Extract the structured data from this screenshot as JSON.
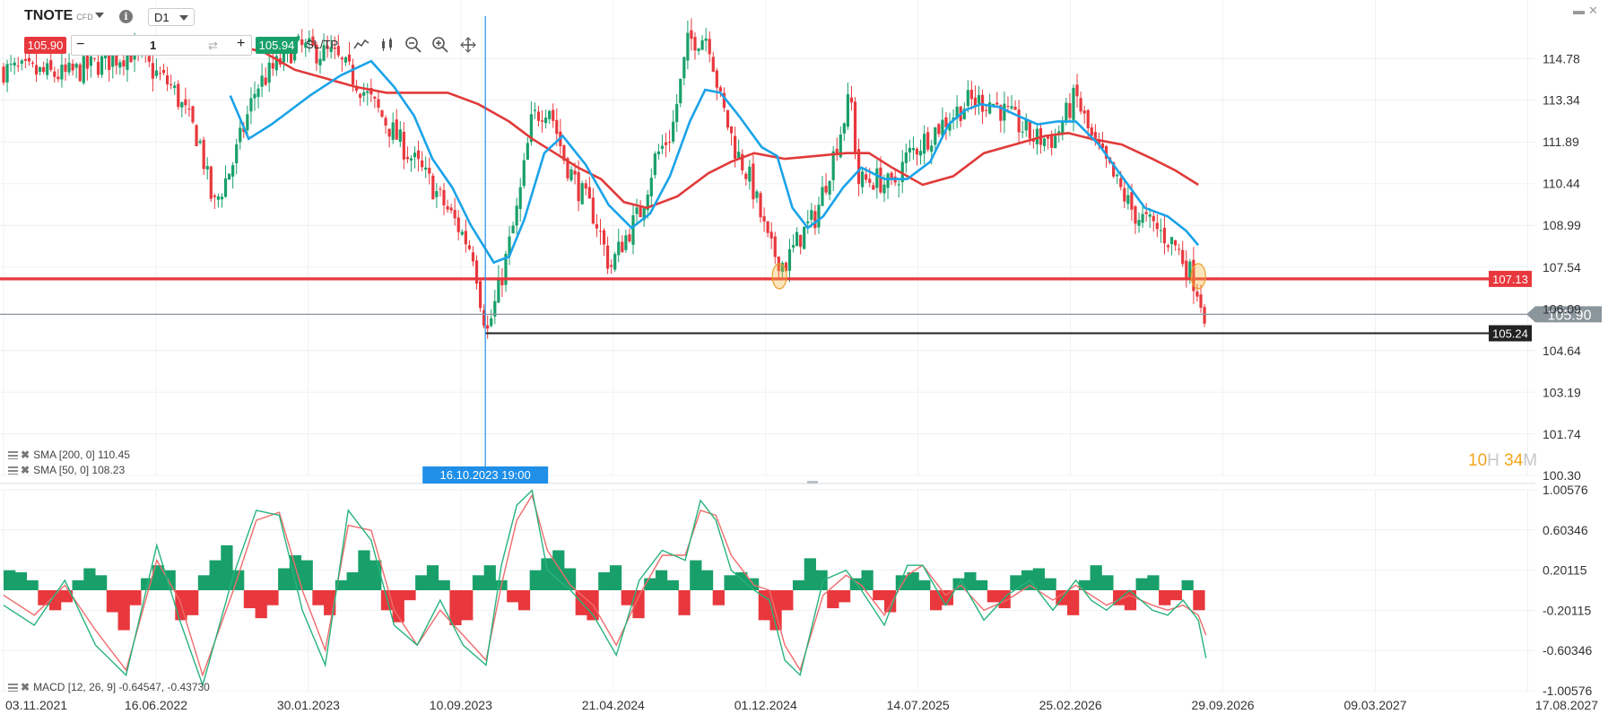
{
  "toolbar": {
    "symbol": "TNOTE",
    "symbol_type": "CFD",
    "timeframe": "D1",
    "bid": "105.90",
    "quantity": "1",
    "ask": "105.94",
    "sltp_label": "SL/TP"
  },
  "icons": [
    "chevron-down-icon",
    "info-icon",
    "line-chart-icon",
    "candles-icon",
    "zoom-out-icon",
    "zoom-in-icon",
    "move-icon",
    "minimize-icon",
    "close-icon"
  ],
  "legends": {
    "sma200": "SMA [200, 0] 110.45",
    "sma50": "SMA [50, 0] 108.23",
    "macd": "MACD [12, 26, 9] -0.64547, -0.43730"
  },
  "timer": {
    "hours": "10",
    "h": "H",
    "minutes": "34",
    "m": "M"
  },
  "crosshair_label": "16.10.2023 19:00",
  "colors": {
    "up": "#19a06a",
    "down": "#e8383d",
    "sma50": "#1aa3e8",
    "sma200": "#e13a3a",
    "macd": "#27b37c",
    "signal": "#ef6b6b",
    "crosshair": "#1f8fe8"
  },
  "chart_data": {
    "type": "candlestick",
    "instrument": "TNOTE",
    "timeframe": "D1",
    "price_axis": {
      "ticks": [
        "114.78",
        "113.34",
        "111.89",
        "110.44",
        "108.99",
        "107.54",
        "104.64",
        "103.19",
        "101.74",
        "100.30"
      ],
      "hidden_tick": "106.09",
      "range": [
        100.3,
        114.78
      ]
    },
    "time_axis": {
      "ticks": [
        "03.11.2021",
        "16.06.2022",
        "30.01.2023",
        "10.09.2023",
        "21.04.2024",
        "01.12.2024",
        "14.07.2025",
        "25.02.2026",
        "29.09.2026",
        "09.03.2027",
        "17.08.2027"
      ]
    },
    "horizontal_lines": [
      {
        "value": 107.13,
        "label": "107.13",
        "color": "#e8383d"
      },
      {
        "value": 105.24,
        "label": "105.24",
        "color": "#222222"
      },
      {
        "value": 105.9,
        "label": "105.90",
        "color": "#8a959c",
        "current_price": true
      }
    ],
    "crosshair": {
      "time": "16.10.2023 19:00"
    },
    "price_path": [
      [
        0.0,
        114.4
      ],
      [
        0.04,
        114.2
      ],
      [
        0.083,
        115.0
      ],
      [
        0.11,
        113.8
      ],
      [
        0.128,
        111.9
      ],
      [
        0.137,
        109.6
      ],
      [
        0.15,
        111.2
      ],
      [
        0.165,
        113.8
      ],
      [
        0.19,
        115.2
      ],
      [
        0.215,
        114.9
      ],
      [
        0.229,
        114.1
      ],
      [
        0.244,
        113.0
      ],
      [
        0.264,
        111.5
      ],
      [
        0.278,
        110.5
      ],
      [
        0.295,
        109.1
      ],
      [
        0.307,
        108.0
      ],
      [
        0.312,
        106.2
      ],
      [
        0.316,
        105.3
      ],
      [
        0.322,
        106.5
      ],
      [
        0.327,
        107.6
      ],
      [
        0.336,
        109.7
      ],
      [
        0.345,
        112.7
      ],
      [
        0.356,
        113.2
      ],
      [
        0.366,
        111.3
      ],
      [
        0.375,
        110.3
      ],
      [
        0.386,
        109.3
      ],
      [
        0.396,
        107.5
      ],
      [
        0.404,
        108.4
      ],
      [
        0.416,
        109.5
      ],
      [
        0.425,
        111.3
      ],
      [
        0.436,
        112.2
      ],
      [
        0.447,
        115.4
      ],
      [
        0.46,
        115.6
      ],
      [
        0.468,
        113.3
      ],
      [
        0.478,
        111.6
      ],
      [
        0.488,
        110.5
      ],
      [
        0.5,
        108.2
      ],
      [
        0.51,
        107.6
      ],
      [
        0.52,
        108.6
      ],
      [
        0.53,
        109.3
      ],
      [
        0.54,
        111.1
      ],
      [
        0.553,
        113.5
      ],
      [
        0.558,
        110.5
      ],
      [
        0.57,
        110.6
      ],
      [
        0.58,
        110.3
      ],
      [
        0.59,
        111.4
      ],
      [
        0.61,
        112.4
      ],
      [
        0.63,
        113.3
      ],
      [
        0.645,
        113.3
      ],
      [
        0.66,
        112.6
      ],
      [
        0.673,
        112.0
      ],
      [
        0.686,
        112.0
      ],
      [
        0.7,
        113.5
      ],
      [
        0.71,
        112.0
      ],
      [
        0.725,
        110.6
      ],
      [
        0.738,
        109.4
      ],
      [
        0.752,
        108.9
      ],
      [
        0.765,
        108.3
      ],
      [
        0.778,
        107.0
      ],
      [
        0.784,
        106.0
      ]
    ],
    "sma50": [
      [
        0.148,
        113.5
      ],
      [
        0.16,
        112.0
      ],
      [
        0.175,
        112.5
      ],
      [
        0.2,
        113.5
      ],
      [
        0.22,
        114.2
      ],
      [
        0.24,
        114.7
      ],
      [
        0.255,
        113.8
      ],
      [
        0.268,
        112.8
      ],
      [
        0.28,
        111.3
      ],
      [
        0.293,
        110.3
      ],
      [
        0.305,
        109.0
      ],
      [
        0.32,
        107.7
      ],
      [
        0.33,
        107.9
      ],
      [
        0.34,
        109.2
      ],
      [
        0.353,
        111.5
      ],
      [
        0.365,
        112.1
      ],
      [
        0.38,
        111.1
      ],
      [
        0.395,
        109.7
      ],
      [
        0.41,
        108.9
      ],
      [
        0.422,
        109.4
      ],
      [
        0.435,
        110.7
      ],
      [
        0.448,
        112.6
      ],
      [
        0.458,
        113.7
      ],
      [
        0.468,
        113.6
      ],
      [
        0.48,
        112.8
      ],
      [
        0.495,
        111.7
      ],
      [
        0.505,
        111.4
      ],
      [
        0.515,
        109.6
      ],
      [
        0.525,
        108.9
      ],
      [
        0.535,
        109.3
      ],
      [
        0.548,
        110.3
      ],
      [
        0.56,
        111.0
      ],
      [
        0.575,
        110.6
      ],
      [
        0.59,
        110.6
      ],
      [
        0.605,
        111.2
      ],
      [
        0.617,
        112.5
      ],
      [
        0.628,
        113.0
      ],
      [
        0.638,
        113.2
      ],
      [
        0.65,
        113.1
      ],
      [
        0.662,
        112.8
      ],
      [
        0.675,
        112.5
      ],
      [
        0.688,
        112.6
      ],
      [
        0.7,
        112.6
      ],
      [
        0.715,
        111.8
      ],
      [
        0.73,
        110.7
      ],
      [
        0.745,
        109.6
      ],
      [
        0.76,
        109.3
      ],
      [
        0.772,
        108.8
      ],
      [
        0.78,
        108.3
      ]
    ],
    "sma200": [
      [
        0.148,
        115.3
      ],
      [
        0.17,
        115.0
      ],
      [
        0.19,
        114.4
      ],
      [
        0.21,
        114.1
      ],
      [
        0.23,
        113.8
      ],
      [
        0.25,
        113.6
      ],
      [
        0.27,
        113.6
      ],
      [
        0.29,
        113.6
      ],
      [
        0.31,
        113.2
      ],
      [
        0.33,
        112.6
      ],
      [
        0.345,
        112.0
      ],
      [
        0.36,
        111.5
      ],
      [
        0.375,
        111.0
      ],
      [
        0.39,
        110.6
      ],
      [
        0.405,
        109.8
      ],
      [
        0.42,
        109.6
      ],
      [
        0.44,
        110.0
      ],
      [
        0.46,
        110.8
      ],
      [
        0.475,
        111.2
      ],
      [
        0.49,
        111.5
      ],
      [
        0.51,
        111.3
      ],
      [
        0.53,
        111.4
      ],
      [
        0.55,
        111.5
      ],
      [
        0.565,
        111.5
      ],
      [
        0.58,
        111.0
      ],
      [
        0.6,
        110.4
      ],
      [
        0.62,
        110.7
      ],
      [
        0.64,
        111.5
      ],
      [
        0.66,
        111.8
      ],
      [
        0.68,
        112.1
      ],
      [
        0.695,
        112.2
      ],
      [
        0.71,
        112.0
      ],
      [
        0.73,
        111.8
      ],
      [
        0.75,
        111.3
      ],
      [
        0.765,
        110.9
      ],
      [
        0.78,
        110.4
      ]
    ],
    "macd_axis": {
      "ticks": [
        "1.00576",
        "0.60346",
        "0.20115",
        "-0.20115",
        "-0.60346",
        "-1.00576"
      ],
      "range": [
        -1.00576,
        1.00576
      ]
    },
    "macd_hist": [
      0.2,
      0.18,
      0.1,
      -0.15,
      -0.2,
      -0.12,
      0.1,
      0.22,
      0.15,
      -0.22,
      -0.4,
      -0.15,
      0.12,
      0.25,
      0.2,
      -0.3,
      -0.25,
      0.15,
      0.3,
      0.45,
      0.2,
      -0.18,
      -0.28,
      -0.15,
      0.22,
      0.35,
      0.3,
      -0.15,
      -0.25,
      0.1,
      0.18,
      0.4,
      0.3,
      -0.2,
      -0.32,
      -0.1,
      0.15,
      0.25,
      0.1,
      -0.35,
      -0.3,
      0.15,
      0.25,
      0.1,
      -0.12,
      -0.2,
      0.2,
      0.32,
      0.4,
      0.22,
      -0.25,
      -0.3,
      0.18,
      0.25,
      -0.15,
      -0.28,
      0.12,
      0.2,
      0.1,
      -0.25,
      0.3,
      0.2,
      -0.15,
      0.15,
      0.18,
      0.12,
      -0.3,
      -0.4,
      -0.2,
      0.1,
      0.32,
      0.2,
      -0.18,
      -0.12,
      0.12,
      0.2,
      -0.1,
      -0.22,
      0.15,
      0.18,
      0.1,
      -0.2,
      -0.15,
      0.12,
      0.18,
      0.1,
      -0.12,
      -0.18,
      0.15,
      0.2,
      0.22,
      0.12,
      -0.15,
      -0.25,
      0.1,
      0.25,
      0.15,
      -0.15,
      -0.2,
      0.12,
      0.15,
      -0.15,
      -0.1,
      0.1,
      -0.2
    ],
    "macd_line": [
      [
        0.0,
        -0.15
      ],
      [
        0.02,
        -0.35
      ],
      [
        0.04,
        0.1
      ],
      [
        0.06,
        -0.55
      ],
      [
        0.08,
        -0.85
      ],
      [
        0.1,
        0.45
      ],
      [
        0.115,
        -0.3
      ],
      [
        0.13,
        -0.95
      ],
      [
        0.15,
        0.15
      ],
      [
        0.165,
        0.8
      ],
      [
        0.18,
        0.75
      ],
      [
        0.195,
        -0.2
      ],
      [
        0.21,
        -0.75
      ],
      [
        0.225,
        0.8
      ],
      [
        0.24,
        0.5
      ],
      [
        0.255,
        -0.35
      ],
      [
        0.27,
        -0.55
      ],
      [
        0.285,
        -0.1
      ],
      [
        0.3,
        -0.55
      ],
      [
        0.315,
        -0.75
      ],
      [
        0.325,
        0.25
      ],
      [
        0.335,
        0.85
      ],
      [
        0.345,
        1.0
      ],
      [
        0.355,
        0.2
      ],
      [
        0.37,
        0.0
      ],
      [
        0.385,
        -0.25
      ],
      [
        0.4,
        -0.65
      ],
      [
        0.415,
        0.1
      ],
      [
        0.43,
        0.4
      ],
      [
        0.445,
        0.3
      ],
      [
        0.455,
        0.9
      ],
      [
        0.465,
        0.7
      ],
      [
        0.475,
        0.2
      ],
      [
        0.49,
        0.0
      ],
      [
        0.5,
        -0.1
      ],
      [
        0.51,
        -0.7
      ],
      [
        0.52,
        -0.85
      ],
      [
        0.535,
        0.1
      ],
      [
        0.55,
        0.2
      ],
      [
        0.56,
        0.0
      ],
      [
        0.575,
        -0.35
      ],
      [
        0.59,
        0.25
      ],
      [
        0.6,
        0.25
      ],
      [
        0.615,
        -0.15
      ],
      [
        0.625,
        0.1
      ],
      [
        0.64,
        -0.3
      ],
      [
        0.655,
        -0.05
      ],
      [
        0.67,
        0.1
      ],
      [
        0.685,
        -0.2
      ],
      [
        0.7,
        0.1
      ],
      [
        0.71,
        -0.1
      ],
      [
        0.72,
        -0.2
      ],
      [
        0.735,
        0.0
      ],
      [
        0.75,
        -0.2
      ],
      [
        0.76,
        -0.25
      ],
      [
        0.77,
        -0.1
      ],
      [
        0.78,
        -0.3
      ],
      [
        0.785,
        -0.68
      ]
    ],
    "signal_line": [
      [
        0.0,
        -0.05
      ],
      [
        0.02,
        -0.25
      ],
      [
        0.04,
        0.05
      ],
      [
        0.06,
        -0.4
      ],
      [
        0.08,
        -0.8
      ],
      [
        0.1,
        0.3
      ],
      [
        0.115,
        -0.1
      ],
      [
        0.13,
        -0.85
      ],
      [
        0.15,
        0.0
      ],
      [
        0.165,
        0.7
      ],
      [
        0.18,
        0.78
      ],
      [
        0.195,
        0.0
      ],
      [
        0.21,
        -0.6
      ],
      [
        0.225,
        0.65
      ],
      [
        0.24,
        0.6
      ],
      [
        0.255,
        -0.2
      ],
      [
        0.27,
        -0.55
      ],
      [
        0.285,
        -0.2
      ],
      [
        0.3,
        -0.45
      ],
      [
        0.315,
        -0.7
      ],
      [
        0.325,
        0.05
      ],
      [
        0.335,
        0.7
      ],
      [
        0.345,
        0.95
      ],
      [
        0.355,
        0.4
      ],
      [
        0.37,
        0.05
      ],
      [
        0.385,
        -0.15
      ],
      [
        0.4,
        -0.55
      ],
      [
        0.415,
        -0.05
      ],
      [
        0.43,
        0.35
      ],
      [
        0.445,
        0.35
      ],
      [
        0.455,
        0.8
      ],
      [
        0.465,
        0.75
      ],
      [
        0.475,
        0.35
      ],
      [
        0.49,
        0.05
      ],
      [
        0.5,
        0.0
      ],
      [
        0.51,
        -0.55
      ],
      [
        0.52,
        -0.8
      ],
      [
        0.535,
        -0.05
      ],
      [
        0.55,
        0.15
      ],
      [
        0.56,
        0.05
      ],
      [
        0.575,
        -0.25
      ],
      [
        0.59,
        0.15
      ],
      [
        0.6,
        0.25
      ],
      [
        0.615,
        -0.05
      ],
      [
        0.625,
        0.05
      ],
      [
        0.64,
        -0.2
      ],
      [
        0.655,
        -0.1
      ],
      [
        0.67,
        0.05
      ],
      [
        0.685,
        -0.1
      ],
      [
        0.7,
        0.05
      ],
      [
        0.71,
        -0.05
      ],
      [
        0.72,
        -0.15
      ],
      [
        0.735,
        -0.05
      ],
      [
        0.75,
        -0.15
      ],
      [
        0.76,
        -0.2
      ],
      [
        0.77,
        -0.15
      ],
      [
        0.78,
        -0.25
      ],
      [
        0.785,
        -0.45
      ]
    ],
    "markers": [
      {
        "time_frac": 0.5065,
        "value": 107.13
      },
      {
        "time_frac": 0.78,
        "value": 107.13
      }
    ]
  }
}
